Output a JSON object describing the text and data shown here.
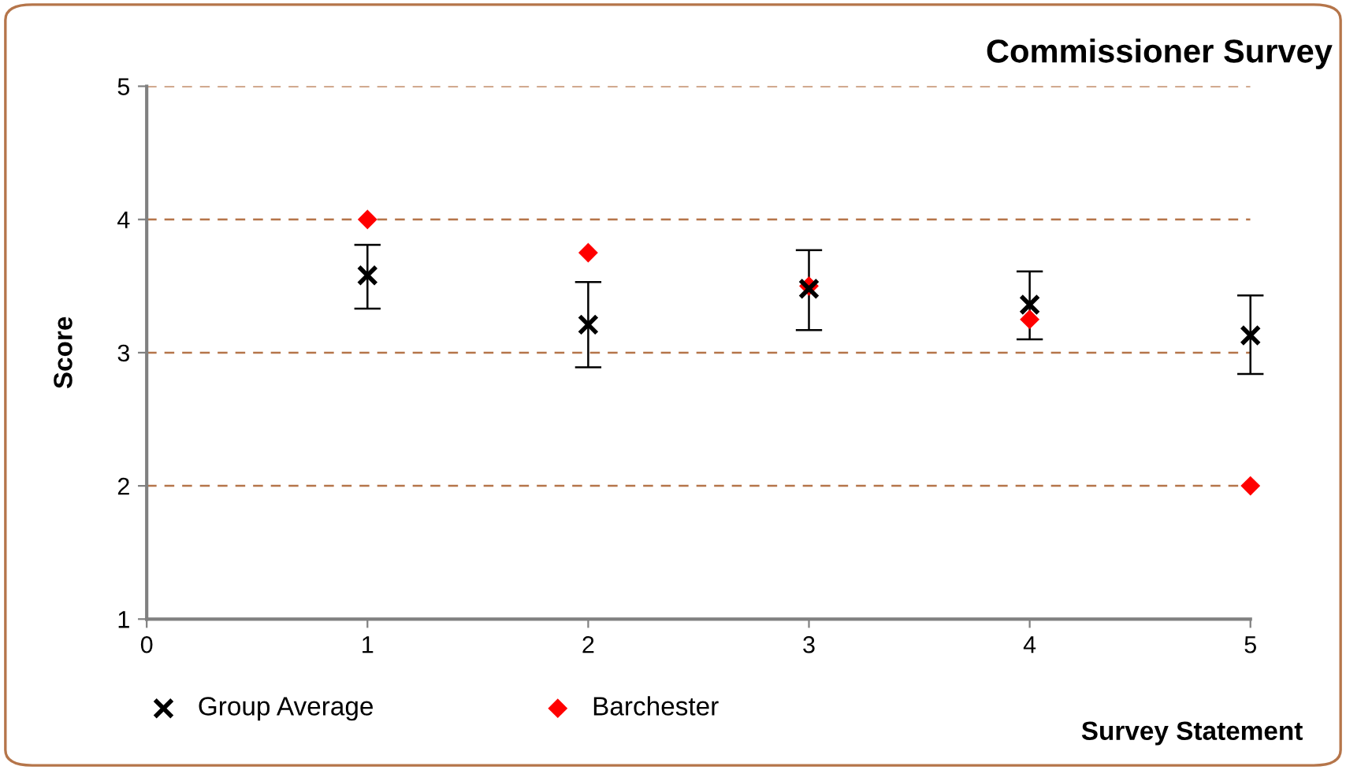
{
  "chart_data": {
    "type": "scatter",
    "title": "Commissioner Survey",
    "xlabel": "Survey Statement",
    "ylabel": "Score",
    "x": [
      1,
      2,
      3,
      4,
      5
    ],
    "series": [
      {
        "name": "Group Average",
        "color": "#000000",
        "marker": "cross",
        "values": [
          3.58,
          3.21,
          3.48,
          3.36,
          3.13
        ],
        "errors": [
          [
            3.33,
            3.81
          ],
          [
            2.89,
            3.53
          ],
          [
            3.17,
            3.77
          ],
          [
            3.1,
            3.61
          ],
          [
            2.84,
            3.43
          ]
        ]
      },
      {
        "name": "Barchester",
        "color": "#ff0000",
        "marker": "diamond",
        "values": [
          4,
          3.75,
          3.5,
          3.25,
          2
        ]
      }
    ],
    "xlim": [
      0,
      5
    ],
    "xticks": [
      0,
      1,
      2,
      3,
      4,
      5
    ],
    "ylim": [
      1,
      5
    ],
    "yticks": [
      1,
      2,
      3,
      4,
      5
    ],
    "grid": "y",
    "legend": "bottom left"
  }
}
